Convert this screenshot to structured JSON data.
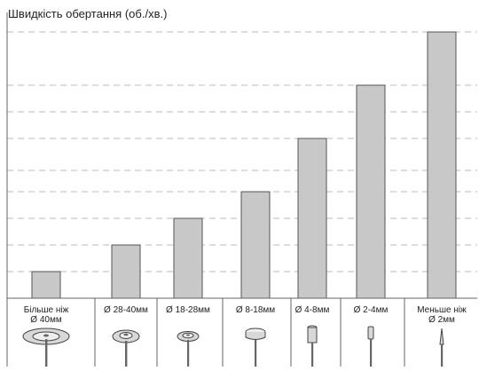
{
  "chart_data": {
    "type": "bar",
    "title": "Швидкість обертання (об./хв.)",
    "xlabel": "",
    "ylabel": "Швидкість обертання (об./хв.)",
    "ylim": [
      0,
      10
    ],
    "grid": true,
    "categories": [
      [
        "Більше ніж",
        "Ø 40мм"
      ],
      [
        "Ø 28-40мм"
      ],
      [
        "Ø 18-28мм"
      ],
      [
        "Ø 8-18мм"
      ],
      [
        "Ø 4-8мм"
      ],
      [
        "Ø 2-4мм"
      ],
      [
        "Меньше ніж",
        "Ø 2мм"
      ]
    ],
    "values": [
      1,
      2,
      3,
      4,
      6,
      8,
      10
    ],
    "tools": [
      "large-cutting-disc",
      "medium-cutting-disc",
      "small-cutting-disc",
      "wheel-point",
      "cylinder-bit",
      "thin-cylinder-bit",
      "fine-point-bit"
    ],
    "colors": {
      "bar": "#c8c8c8",
      "bar_stroke": "#555555",
      "grid": "#bbbbbb",
      "axis": "#666666"
    }
  }
}
